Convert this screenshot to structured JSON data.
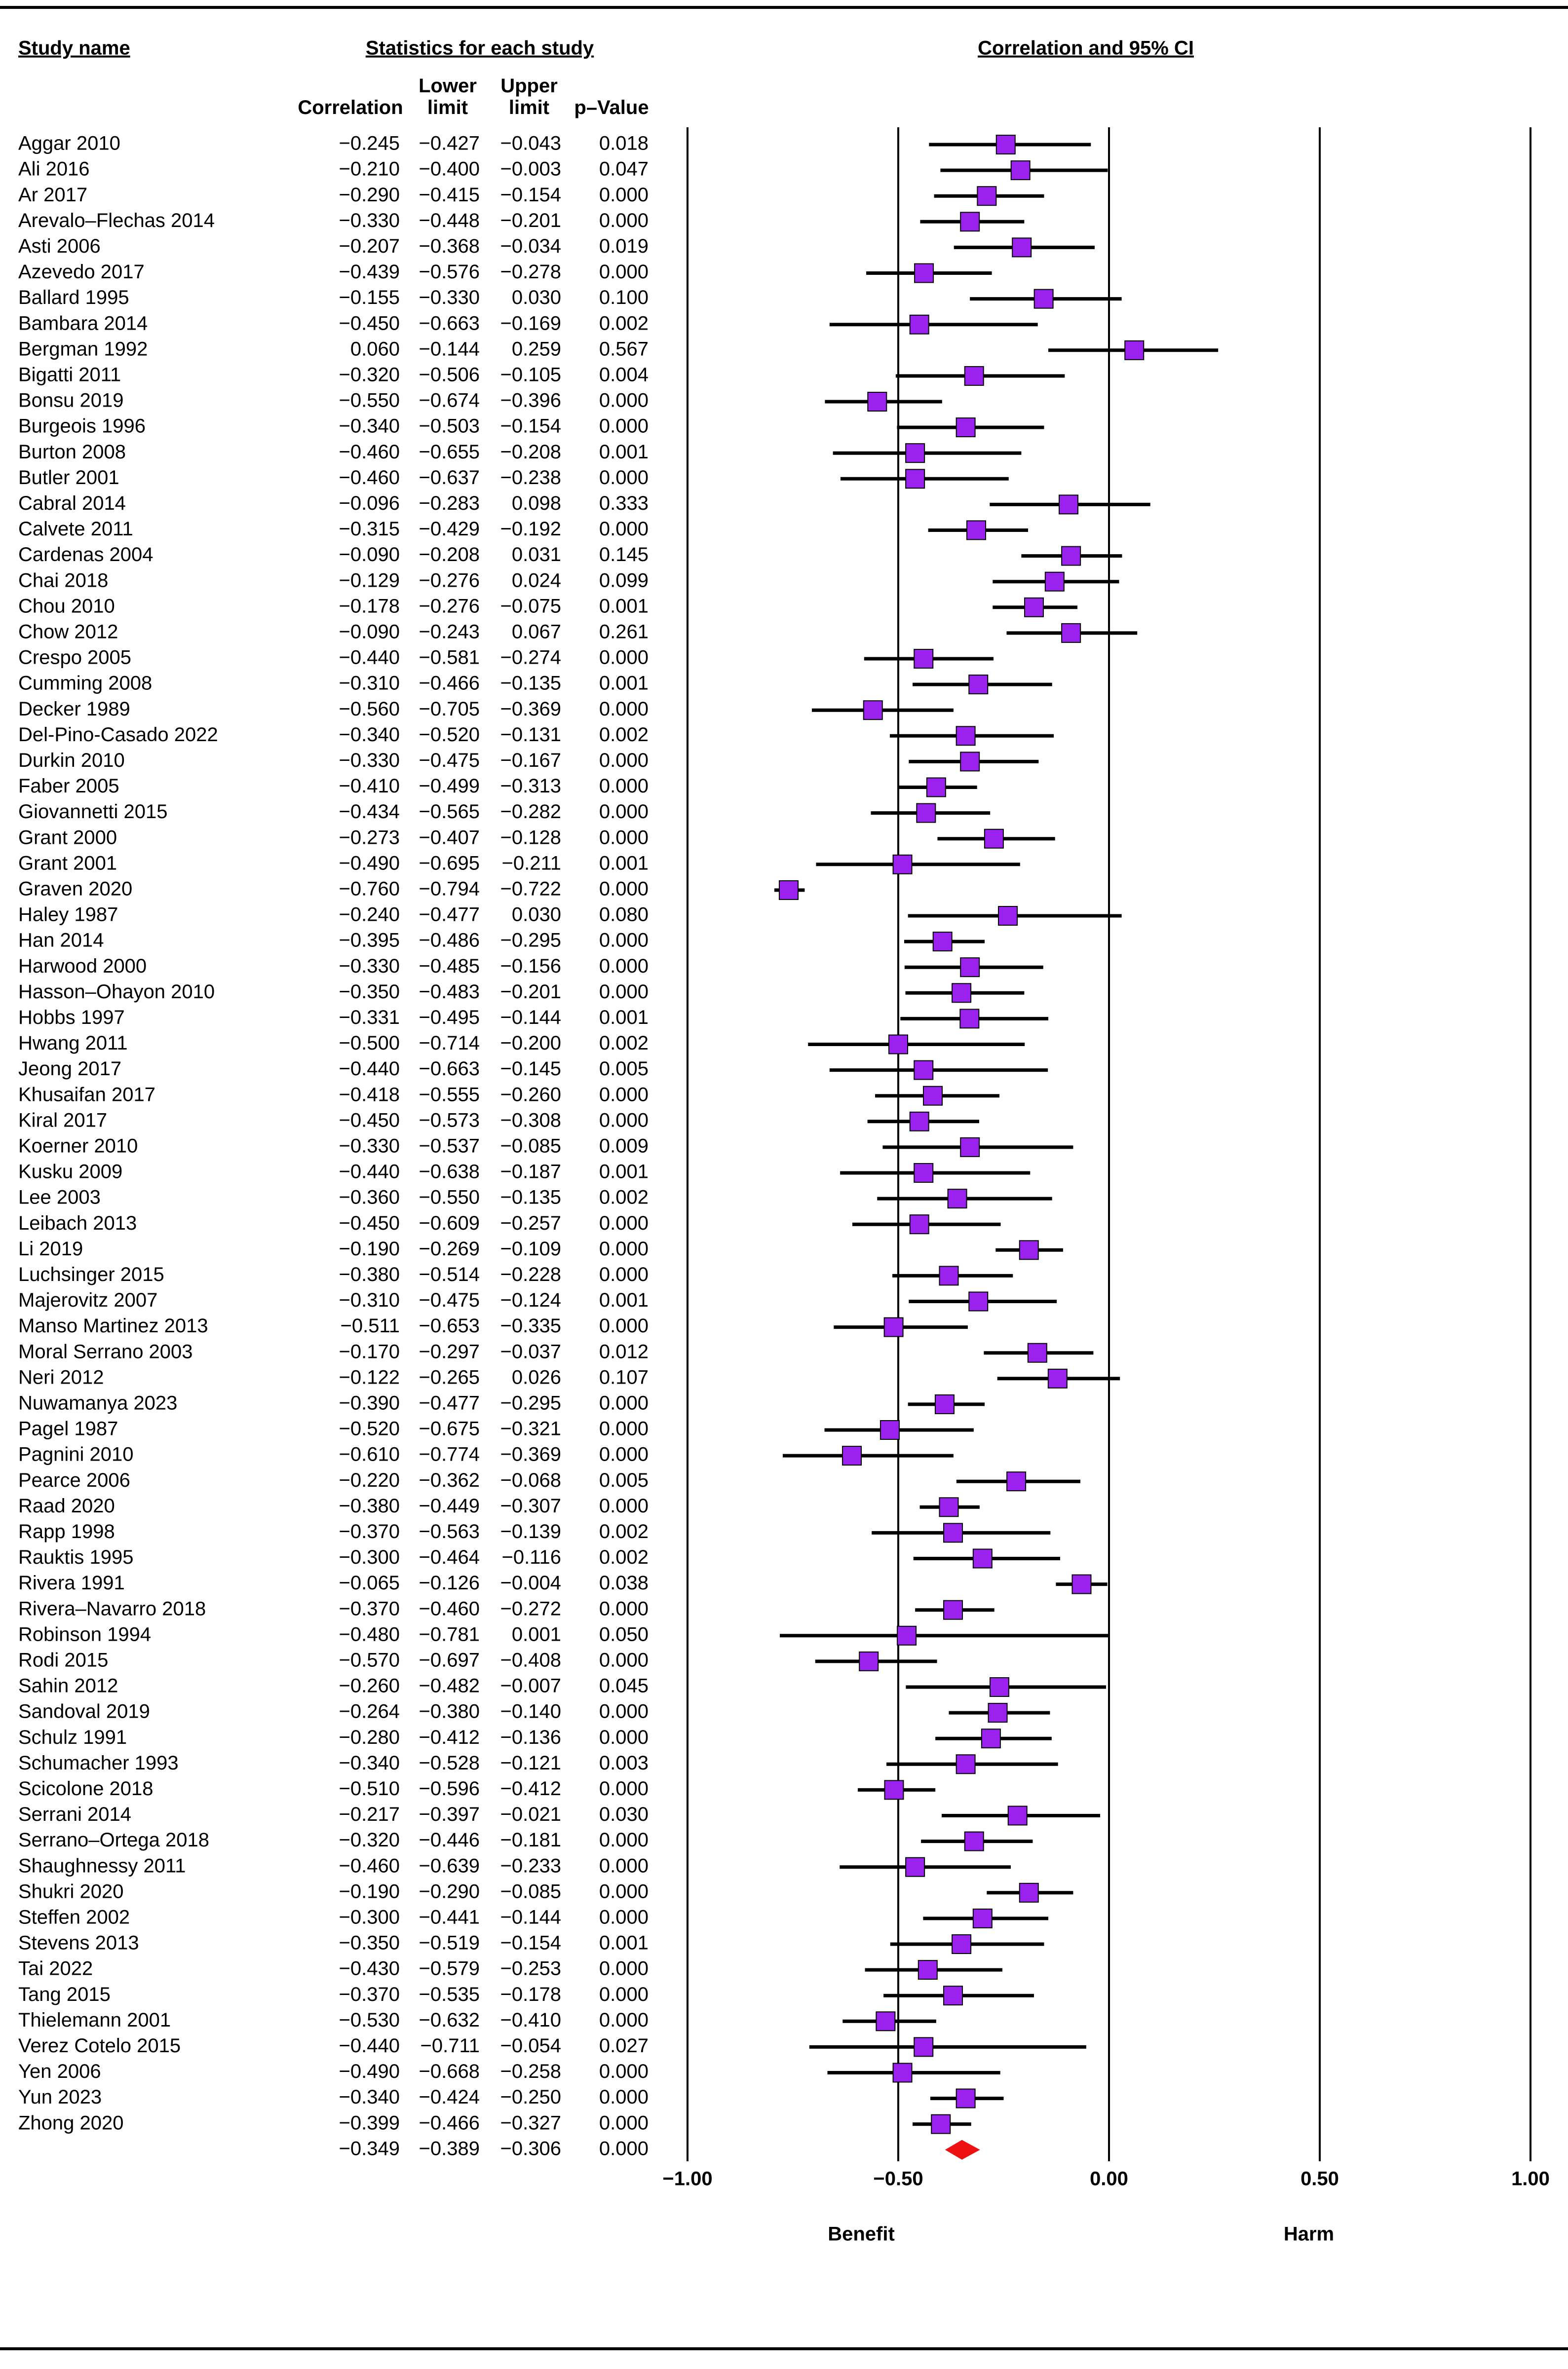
{
  "chart_data": {
    "type": "forest",
    "study_header": "Study name",
    "group_header": "Statistics for each study",
    "plot_title": "Correlation and 95% CI",
    "x_left_label": "Benefit",
    "x_right_label": "Harm",
    "xlim": [
      -1,
      1
    ],
    "xticks": [
      {
        "value": -1,
        "label": "−1.00"
      },
      {
        "value": -0.5,
        "label": "−0.50"
      },
      {
        "value": 0,
        "label": "0.00"
      },
      {
        "value": 0.5,
        "label": "0.50"
      },
      {
        "value": 1,
        "label": "1.00"
      }
    ],
    "grid": true,
    "marker_color": "#9b22ee",
    "summary_color": "#ee1111",
    "categories": [
      "Aggar 2010",
      "Ali 2016",
      "Ar 2017",
      "Arevalo–Flechas 2014",
      "Asti 2006",
      "Azevedo 2017",
      "Ballard 1995",
      "Bambara 2014",
      "Bergman 1992",
      "Bigatti 2011",
      "Bonsu 2019",
      "Burgeois 1996",
      "Burton 2008",
      "Butler 2001",
      "Cabral 2014",
      "Calvete 2011",
      "Cardenas 2004",
      "Chai 2018",
      "Chou 2010",
      "Chow 2012",
      "Crespo 2005",
      "Cumming 2008",
      "Decker 1989",
      "Del-Pino-Casado 2022",
      "Durkin 2010",
      "Faber 2005",
      "Giovannetti 2015",
      "Grant 2000",
      "Grant 2001",
      "Graven 2020",
      "Haley 1987",
      "Han 2014",
      "Harwood 2000",
      "Hasson–Ohayon 2010",
      "Hobbs 1997",
      "Hwang 2011",
      "Jeong 2017",
      "Khusaifan 2017",
      "Kiral 2017",
      "Koerner 2010",
      "Kusku 2009",
      "Lee 2003",
      "Leibach 2013",
      "Li 2019",
      "Luchsinger 2015",
      "Majerovitz 2007",
      "Manso Martinez 2013",
      "Moral Serrano 2003",
      "Neri 2012",
      "Nuwamanya 2023",
      "Pagel 1987",
      "Pagnini 2010",
      "Pearce 2006",
      "Raad 2020",
      "Rapp 1998",
      "Rauktis 1995",
      "Rivera 1991",
      "Rivera–Navarro 2018",
      "Robinson 1994",
      "Rodi 2015",
      "Sahin 2012",
      "Sandoval 2019",
      "Schulz 1991",
      "Schumacher 1993",
      "Scicolone 2018",
      "Serrani 2014",
      "Serrano–Ortega 2018",
      "Shaughnessy 2011",
      "Shukri 2020",
      "Steffen 2002",
      "Stevens 2013",
      "Tai 2022",
      "Tang 2015",
      "Thielemann 2001",
      "Verez Cotelo 2015",
      "Yen 2006",
      "Yun 2023",
      "Zhong 2020",
      null
    ],
    "columns": [
      {
        "name": "Correlation",
        "values": [
          -0.245,
          -0.21,
          -0.29,
          -0.33,
          -0.207,
          -0.439,
          -0.155,
          -0.45,
          0.06,
          -0.32,
          -0.55,
          -0.34,
          -0.46,
          -0.46,
          -0.096,
          -0.315,
          -0.09,
          -0.129,
          -0.178,
          -0.09,
          -0.44,
          -0.31,
          -0.56,
          -0.34,
          -0.33,
          -0.41,
          -0.434,
          -0.273,
          -0.49,
          -0.76,
          -0.24,
          -0.395,
          -0.33,
          -0.35,
          -0.331,
          -0.5,
          -0.44,
          -0.418,
          -0.45,
          -0.33,
          -0.44,
          -0.36,
          -0.45,
          -0.19,
          -0.38,
          -0.31,
          -0.511,
          -0.17,
          -0.122,
          -0.39,
          -0.52,
          -0.61,
          -0.22,
          -0.38,
          -0.37,
          -0.3,
          -0.065,
          -0.37,
          -0.48,
          -0.57,
          -0.26,
          -0.264,
          -0.28,
          -0.34,
          -0.51,
          -0.217,
          -0.32,
          -0.46,
          -0.19,
          -0.3,
          -0.35,
          -0.43,
          -0.37,
          -0.53,
          -0.44,
          -0.49,
          -0.34,
          -0.399,
          -0.349
        ],
        "value_labels": [
          "−0.245",
          "−0.210",
          "−0.290",
          "−0.330",
          "−0.207",
          "−0.439",
          "−0.155",
          "−0.450",
          "0.060",
          "−0.320",
          "−0.550",
          "−0.340",
          "−0.460",
          "−0.460",
          "−0.096",
          "−0.315",
          "−0.090",
          "−0.129",
          "−0.178",
          "−0.090",
          "−0.440",
          "−0.310",
          "−0.560",
          "−0.340",
          "−0.330",
          "−0.410",
          "−0.434",
          "−0.273",
          "−0.490",
          "−0.760",
          "−0.240",
          "−0.395",
          "−0.330",
          "−0.350",
          "−0.331",
          "−0.500",
          "−0.440",
          "−0.418",
          "−0.450",
          "−0.330",
          "−0.440",
          "−0.360",
          "−0.450",
          "−0.190",
          "−0.380",
          "−0.310",
          "−0.511",
          "−0.170",
          "−0.122",
          "−0.390",
          "−0.520",
          "−0.610",
          "−0.220",
          "−0.380",
          "−0.370",
          "−0.300",
          "−0.065",
          "−0.370",
          "−0.480",
          "−0.570",
          "−0.260",
          "−0.264",
          "−0.280",
          "−0.340",
          "−0.510",
          "−0.217",
          "−0.320",
          "−0.460",
          "−0.190",
          "−0.300",
          "−0.350",
          "−0.430",
          "−0.370",
          "−0.530",
          "−0.440",
          "−0.490",
          "−0.340",
          "−0.399",
          "−0.349"
        ]
      },
      {
        "name": "Lower limit",
        "values": [
          -0.427,
          -0.4,
          -0.415,
          -0.448,
          -0.368,
          -0.576,
          -0.33,
          -0.663,
          -0.144,
          -0.506,
          -0.674,
          -0.503,
          -0.655,
          -0.637,
          -0.283,
          -0.429,
          -0.208,
          -0.276,
          -0.276,
          -0.243,
          -0.581,
          -0.466,
          -0.705,
          -0.52,
          -0.475,
          -0.499,
          -0.565,
          -0.407,
          -0.695,
          -0.794,
          -0.477,
          -0.486,
          -0.485,
          -0.483,
          -0.495,
          -0.714,
          -0.663,
          -0.555,
          -0.573,
          -0.537,
          -0.638,
          -0.55,
          -0.609,
          -0.269,
          -0.514,
          -0.475,
          -0.653,
          -0.297,
          -0.265,
          -0.477,
          -0.675,
          -0.774,
          -0.362,
          -0.449,
          -0.563,
          -0.464,
          -0.126,
          -0.46,
          -0.781,
          -0.697,
          -0.482,
          -0.38,
          -0.412,
          -0.528,
          -0.596,
          -0.397,
          -0.446,
          -0.639,
          -0.29,
          -0.441,
          -0.519,
          -0.579,
          -0.535,
          -0.632,
          -0.711,
          -0.668,
          -0.424,
          -0.466,
          -0.389
        ],
        "value_labels": [
          "−0.427",
          "−0.400",
          "−0.415",
          "−0.448",
          "−0.368",
          "−0.576",
          "−0.330",
          "−0.663",
          "−0.144",
          "−0.506",
          "−0.674",
          "−0.503",
          "−0.655",
          "−0.637",
          "−0.283",
          "−0.429",
          "−0.208",
          "−0.276",
          "−0.276",
          "−0.243",
          "−0.581",
          "−0.466",
          "−0.705",
          "−0.520",
          "−0.475",
          "−0.499",
          "−0.565",
          "−0.407",
          "−0.695",
          "−0.794",
          "−0.477",
          "−0.486",
          "−0.485",
          "−0.483",
          "−0.495",
          "−0.714",
          "−0.663",
          "−0.555",
          "−0.573",
          "−0.537",
          "−0.638",
          "−0.550",
          "−0.609",
          "−0.269",
          "−0.514",
          "−0.475",
          "−0.653",
          "−0.297",
          "−0.265",
          "−0.477",
          "−0.675",
          "−0.774",
          "−0.362",
          "−0.449",
          "−0.563",
          "−0.464",
          "−0.126",
          "−0.460",
          "−0.781",
          "−0.697",
          "−0.482",
          "−0.380",
          "−0.412",
          "−0.528",
          "−0.596",
          "−0.397",
          "−0.446",
          "−0.639",
          "−0.290",
          "−0.441",
          "−0.519",
          "−0.579",
          "−0.535",
          "−0.632",
          "−0.711",
          "−0.668",
          "−0.424",
          "−0.466",
          "−0.389"
        ]
      },
      {
        "name": "Upper limit",
        "values": [
          -0.043,
          -0.003,
          -0.154,
          -0.201,
          -0.034,
          -0.278,
          0.03,
          -0.169,
          0.259,
          -0.105,
          -0.396,
          -0.154,
          -0.208,
          -0.238,
          0.098,
          -0.192,
          0.031,
          0.024,
          -0.075,
          0.067,
          -0.274,
          -0.135,
          -0.369,
          -0.131,
          -0.167,
          -0.313,
          -0.282,
          -0.128,
          -0.211,
          -0.722,
          0.03,
          -0.295,
          -0.156,
          -0.201,
          -0.144,
          -0.2,
          -0.145,
          -0.26,
          -0.308,
          -0.085,
          -0.187,
          -0.135,
          -0.257,
          -0.109,
          -0.228,
          -0.124,
          -0.335,
          -0.037,
          0.026,
          -0.295,
          -0.321,
          -0.369,
          -0.068,
          -0.307,
          -0.139,
          -0.116,
          -0.004,
          -0.272,
          0.001,
          -0.408,
          -0.007,
          -0.14,
          -0.136,
          -0.121,
          -0.412,
          -0.021,
          -0.181,
          -0.233,
          -0.085,
          -0.144,
          -0.154,
          -0.253,
          -0.178,
          -0.41,
          -0.054,
          -0.258,
          -0.25,
          -0.327,
          -0.306
        ],
        "value_labels": [
          "−0.043",
          "−0.003",
          "−0.154",
          "−0.201",
          "−0.034",
          "−0.278",
          "0.030",
          "−0.169",
          "0.259",
          "−0.105",
          "−0.396",
          "−0.154",
          "−0.208",
          "−0.238",
          "0.098",
          "−0.192",
          "0.031",
          "0.024",
          "−0.075",
          "0.067",
          "−0.274",
          "−0.135",
          "−0.369",
          "−0.131",
          "−0.167",
          "−0.313",
          "−0.282",
          "−0.128",
          "−0.211",
          "−0.722",
          "0.030",
          "−0.295",
          "−0.156",
          "−0.201",
          "−0.144",
          "−0.200",
          "−0.145",
          "−0.260",
          "−0.308",
          "−0.085",
          "−0.187",
          "−0.135",
          "−0.257",
          "−0.109",
          "−0.228",
          "−0.124",
          "−0.335",
          "−0.037",
          "0.026",
          "−0.295",
          "−0.321",
          "−0.369",
          "−0.068",
          "−0.307",
          "−0.139",
          "−0.116",
          "−0.004",
          "−0.272",
          "0.001",
          "−0.408",
          "−0.007",
          "−0.140",
          "−0.136",
          "−0.121",
          "−0.412",
          "−0.021",
          "−0.181",
          "−0.233",
          "−0.085",
          "−0.144",
          "−0.154",
          "−0.253",
          "−0.178",
          "−0.410",
          "−0.054",
          "−0.258",
          "−0.250",
          "−0.327",
          "−0.306"
        ]
      },
      {
        "name": "p–Value",
        "values": [
          0.018,
          0.047,
          0,
          0,
          0.019,
          0,
          0.1,
          0.002,
          0.567,
          0.004,
          0,
          0,
          0.001,
          0,
          0.333,
          0,
          0.145,
          0.099,
          0.001,
          0.261,
          0,
          0.001,
          0,
          0.002,
          0,
          0,
          0,
          0,
          0.001,
          0,
          0.08,
          0,
          0,
          0,
          0.001,
          0.002,
          0.005,
          0,
          0,
          0.009,
          0.001,
          0.002,
          0,
          0,
          0,
          0.001,
          0,
          0.012,
          0.107,
          0,
          0,
          0,
          0.005,
          0,
          0.002,
          0.002,
          0.038,
          0,
          0.05,
          0,
          0.045,
          0,
          0,
          0.003,
          0,
          0.03,
          0,
          0,
          0,
          0,
          0.001,
          0,
          0,
          0,
          0.027,
          0,
          0,
          0,
          0
        ],
        "value_labels": [
          "0.018",
          "0.047",
          "0.000",
          "0.000",
          "0.019",
          "0.000",
          "0.100",
          "0.002",
          "0.567",
          "0.004",
          "0.000",
          "0.000",
          "0.001",
          "0.000",
          "0.333",
          "0.000",
          "0.145",
          "0.099",
          "0.001",
          "0.261",
          "0.000",
          "0.001",
          "0.000",
          "0.002",
          "0.000",
          "0.000",
          "0.000",
          "0.000",
          "0.001",
          "0.000",
          "0.080",
          "0.000",
          "0.000",
          "0.000",
          "0.001",
          "0.002",
          "0.005",
          "0.000",
          "0.000",
          "0.009",
          "0.001",
          "0.002",
          "0.000",
          "0.000",
          "0.000",
          "0.001",
          "0.000",
          "0.012",
          "0.107",
          "0.000",
          "0.000",
          "0.000",
          "0.005",
          "0.000",
          "0.002",
          "0.002",
          "0.038",
          "0.000",
          "0.050",
          "0.000",
          "0.045",
          "0.000",
          "0.000",
          "0.003",
          "0.000",
          "0.030",
          "0.000",
          "0.000",
          "0.000",
          "0.000",
          "0.001",
          "0.000",
          "0.000",
          "0.000",
          "0.027",
          "0.000",
          "0.000",
          "0.000",
          "0.000"
        ]
      }
    ]
  }
}
